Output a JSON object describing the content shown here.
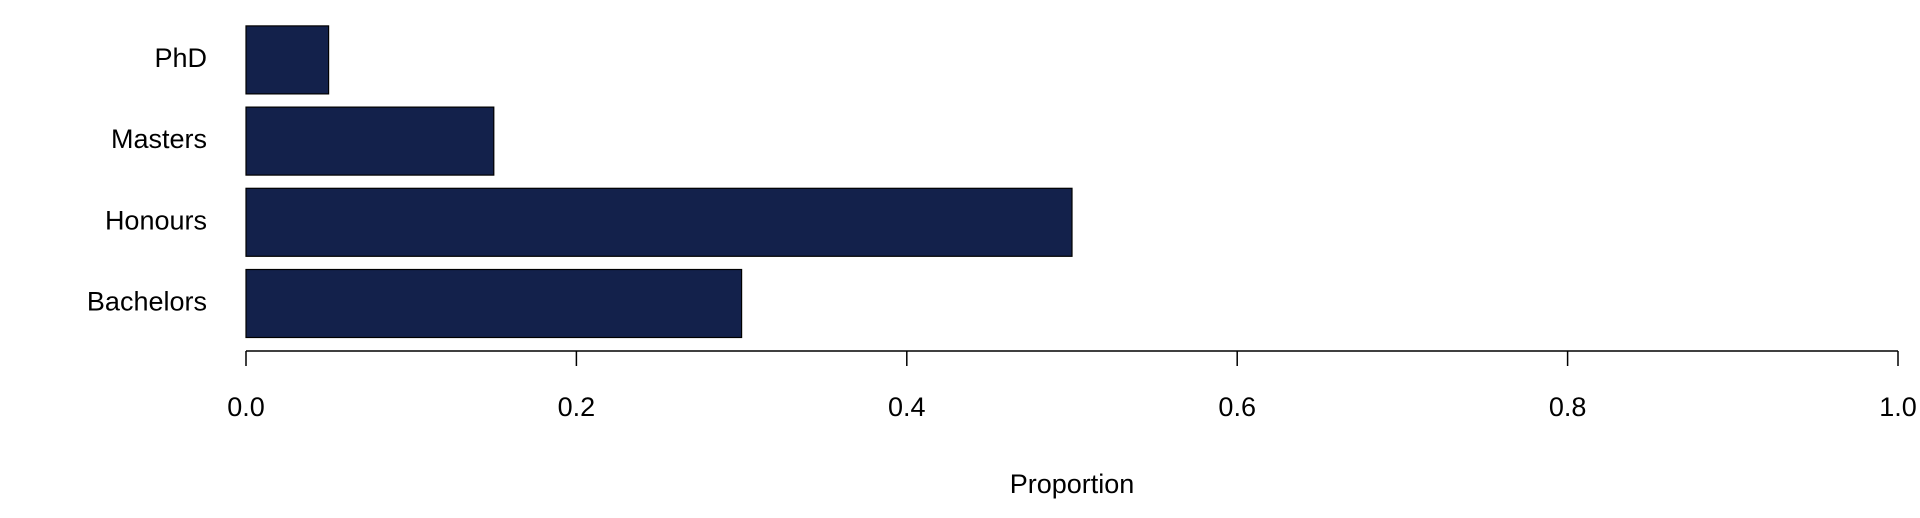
{
  "chart_data": {
    "type": "barh",
    "x_label": "Proportion",
    "categories": [
      "Bachelors",
      "Honours",
      "Masters",
      "PhD"
    ],
    "values": [
      0.3,
      0.5,
      0.15,
      0.05
    ],
    "color": "#13214b",
    "xlim": [
      0,
      1
    ],
    "xticks": [
      {
        "value": 0,
        "label": "0.0"
      },
      0.2,
      0.4,
      0.6,
      0.8,
      {
        "value": 1,
        "label": "1.0"
      }
    ]
  }
}
